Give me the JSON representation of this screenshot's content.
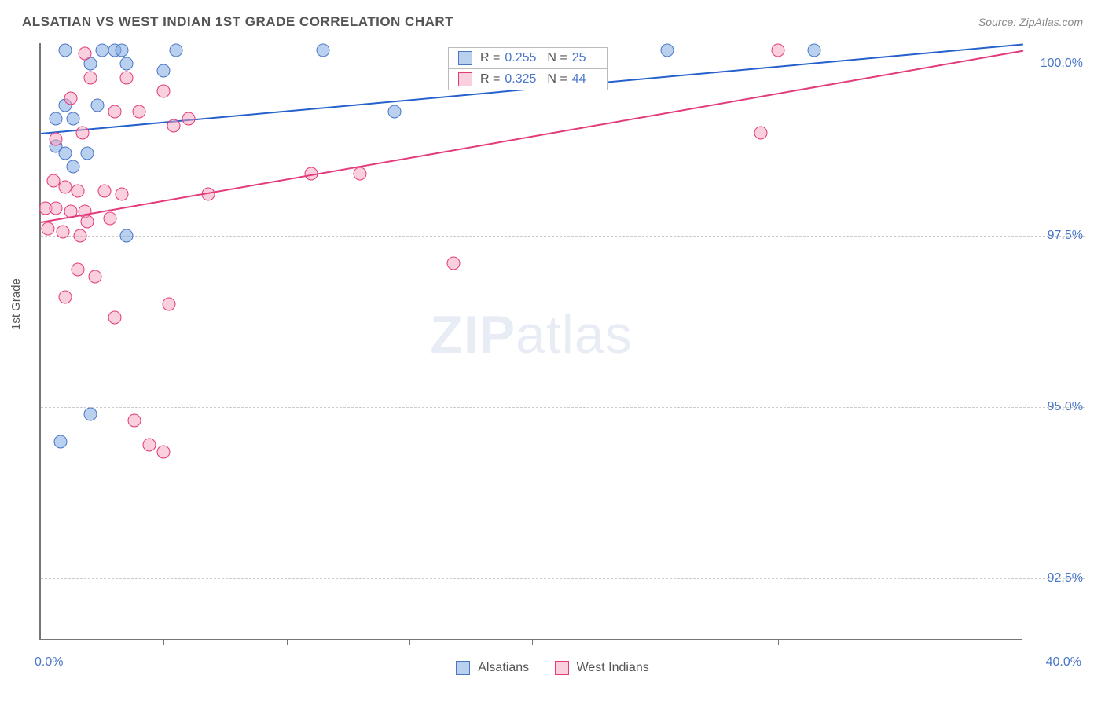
{
  "title": "ALSATIAN VS WEST INDIAN 1ST GRADE CORRELATION CHART",
  "source": "Source: ZipAtlas.com",
  "yaxis_title": "1st Grade",
  "watermark_zip": "ZIP",
  "watermark_atlas": "atlas",
  "background_color": "#ffffff",
  "axis_color": "#757575",
  "grid_color": "#cccccc",
  "label_color": "#4a76c7",
  "title_color": "#555555",
  "chart": {
    "type": "scatter",
    "xlim": [
      0,
      40
    ],
    "ylim": [
      91.6,
      100.3
    ],
    "x_tick_step": 5,
    "y_ticks": [
      92.5,
      95.0,
      97.5,
      100.0
    ],
    "y_tick_labels": [
      "92.5%",
      "95.0%",
      "97.5%",
      "100.0%"
    ],
    "x_min_label": "0.0%",
    "x_max_label": "40.0%",
    "marker_radius": 8.5,
    "marker_border_width": 1.2,
    "line_width": 2,
    "series": [
      {
        "name": "Alsatians",
        "fill": "rgba(130, 170, 225, 0.55)",
        "stroke": "#4a76c7",
        "line_color": "#2560cc",
        "r": 0.255,
        "n": 25,
        "trend": {
          "x1": 0,
          "y1": 99.0,
          "x2": 40,
          "y2": 100.3
        },
        "points": [
          [
            1.0,
            100.2
          ],
          [
            2.5,
            100.2
          ],
          [
            3.0,
            100.2
          ],
          [
            3.3,
            100.2
          ],
          [
            5.5,
            100.2
          ],
          [
            11.5,
            100.2
          ],
          [
            25.5,
            100.2
          ],
          [
            31.5,
            100.2
          ],
          [
            2.0,
            100.0
          ],
          [
            3.5,
            100.0
          ],
          [
            5.0,
            99.9
          ],
          [
            1.0,
            99.4
          ],
          [
            2.3,
            99.4
          ],
          [
            0.6,
            99.2
          ],
          [
            1.3,
            99.2
          ],
          [
            0.6,
            98.8
          ],
          [
            1.0,
            98.7
          ],
          [
            1.9,
            98.7
          ],
          [
            14.4,
            99.3
          ],
          [
            1.3,
            98.5
          ],
          [
            3.5,
            97.5
          ],
          [
            2.0,
            94.9
          ],
          [
            0.8,
            94.5
          ]
        ]
      },
      {
        "name": "West Indians",
        "fill": "rgba(245, 160, 190, 0.50)",
        "stroke": "#e23a7a",
        "line_color": "#e23a7a",
        "r": 0.325,
        "n": 44,
        "trend": {
          "x1": 0,
          "y1": 97.7,
          "x2": 40,
          "y2": 100.2
        },
        "points": [
          [
            30.0,
            100.2
          ],
          [
            1.8,
            100.15
          ],
          [
            2.0,
            99.8
          ],
          [
            3.5,
            99.8
          ],
          [
            5.0,
            99.6
          ],
          [
            1.2,
            99.5
          ],
          [
            3.0,
            99.3
          ],
          [
            4.0,
            99.3
          ],
          [
            6.0,
            99.2
          ],
          [
            5.4,
            99.1
          ],
          [
            0.6,
            98.9
          ],
          [
            1.7,
            99.0
          ],
          [
            11.0,
            98.4
          ],
          [
            13.0,
            98.4
          ],
          [
            0.5,
            98.3
          ],
          [
            1.0,
            98.2
          ],
          [
            1.5,
            98.15
          ],
          [
            2.6,
            98.15
          ],
          [
            3.3,
            98.1
          ],
          [
            6.8,
            98.1
          ],
          [
            0.2,
            97.9
          ],
          [
            0.6,
            97.9
          ],
          [
            1.2,
            97.85
          ],
          [
            1.8,
            97.85
          ],
          [
            2.8,
            97.75
          ],
          [
            1.9,
            97.7
          ],
          [
            0.3,
            97.6
          ],
          [
            0.9,
            97.55
          ],
          [
            1.6,
            97.5
          ],
          [
            16.8,
            97.1
          ],
          [
            29.3,
            99.0
          ],
          [
            1.5,
            97.0
          ],
          [
            2.2,
            96.9
          ],
          [
            1.0,
            96.6
          ],
          [
            5.2,
            96.5
          ],
          [
            3.0,
            96.3
          ],
          [
            3.8,
            94.8
          ],
          [
            4.4,
            94.45
          ],
          [
            5.0,
            94.35
          ]
        ]
      }
    ]
  },
  "legend_bottom": [
    "Alsatians",
    "West Indians"
  ]
}
